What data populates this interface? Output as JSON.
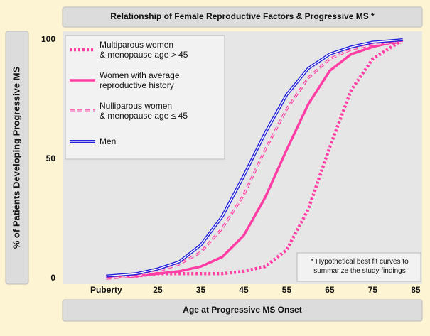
{
  "chart_data": {
    "type": "line",
    "title": "Relationship of Female Reproductive Factors & Progressive MS *",
    "x_label": "Age at Progressive MS Onset",
    "y_label": "% of Patients Developing Progressive MS",
    "annotation": "* Hypothetical best fit curves to\nsummarize the study findings",
    "x": [
      13,
      20,
      25,
      30,
      35,
      40,
      45,
      50,
      55,
      60,
      65,
      70,
      75,
      82
    ],
    "xlim": [
      5,
      86.5
    ],
    "xticks": [
      {
        "value": 13,
        "label": "Puberty"
      },
      25,
      35,
      45,
      55,
      65,
      75,
      85
    ],
    "ylim": [
      0,
      100
    ],
    "yticks": [
      0,
      50,
      100
    ],
    "series": [
      {
        "name": "Multiparous women\n& menopause age > 45",
        "color": "#ff3ea5",
        "style": "dotted",
        "values": [
          1,
          1,
          2,
          2,
          2,
          2,
          3,
          5,
          12,
          29,
          55,
          79,
          92,
          100
        ]
      },
      {
        "name": "Women with average\nreproductive history",
        "color": "#ff3ea5",
        "style": "solid",
        "values": [
          1,
          1,
          2,
          3,
          5,
          9,
          18,
          34,
          54,
          73,
          87,
          94,
          97,
          100
        ]
      },
      {
        "name": "Nulliparous women\n& menopause age ≤ 45",
        "color": "#ff3ea5",
        "style": "dashed-double",
        "values": [
          0,
          1,
          3,
          6,
          11,
          21,
          35,
          54,
          71,
          84,
          92,
          96,
          98,
          99
        ]
      },
      {
        "name": "Men",
        "color": "#2020d8",
        "style": "double",
        "values": [
          1,
          2,
          4,
          7,
          14,
          26,
          43,
          61,
          77,
          88,
          94,
          97,
          99,
          100
        ]
      }
    ]
  }
}
